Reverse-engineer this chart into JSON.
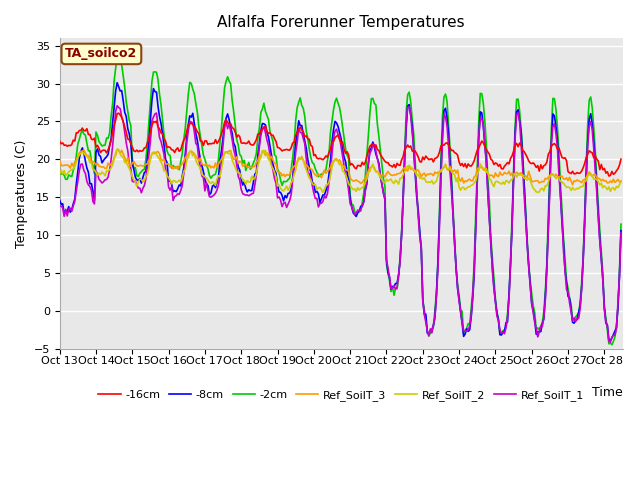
{
  "title": "Alfalfa Forerunner Temperatures",
  "ylabel": "Temperatures (C)",
  "xlabel": "Time",
  "annotation": "TA_soilco2",
  "ylim": [
    -5,
    36
  ],
  "yticks": [
    -5,
    0,
    5,
    10,
    15,
    20,
    25,
    30,
    35
  ],
  "x_tick_labels": [
    "Oct 13",
    "Oct 14",
    "Oct 15",
    "Oct 16",
    "Oct 17",
    "Oct 18",
    "Oct 19",
    "Oct 20",
    "Oct 21",
    "Oct 22",
    "Oct 23",
    "Oct 24",
    "Oct 25",
    "Oct 26",
    "Oct 27",
    "Oct 28"
  ],
  "series_colors": {
    "-16cm": "#ff0000",
    "-8cm": "#0000ff",
    "-2cm": "#00cc00",
    "Ref_SoilT_3": "#ff9900",
    "Ref_SoilT_2": "#cccc00",
    "Ref_SoilT_1": "#cc00cc"
  },
  "bg_color": "#e8e8e8",
  "line_width": 1.2
}
